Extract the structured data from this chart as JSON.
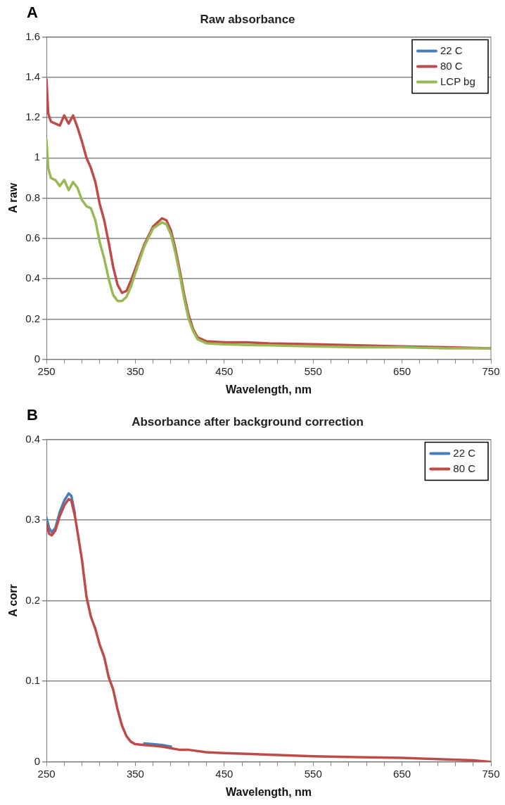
{
  "chart_data": [
    {
      "type": "line",
      "title": "Raw absorbance",
      "xlabel": "Wavelength, nm",
      "ylabel": "A raw",
      "annotations": [
        "A"
      ],
      "xlim": [
        250,
        750
      ],
      "xticks": [
        250,
        {
          "value": 270,
          "label": null
        },
        {
          "value": 290,
          "label": null
        },
        {
          "value": 310,
          "label": null
        },
        {
          "value": 330,
          "label": null
        },
        350,
        {
          "value": 370,
          "label": null
        },
        {
          "value": 390,
          "label": null
        },
        {
          "value": 410,
          "label": null
        },
        {
          "value": 430,
          "label": null
        },
        450,
        {
          "value": 470,
          "label": null
        },
        {
          "value": 490,
          "label": null
        },
        {
          "value": 510,
          "label": null
        },
        {
          "value": 530,
          "label": null
        },
        550,
        {
          "value": 570,
          "label": null
        },
        {
          "value": 590,
          "label": null
        },
        {
          "value": 610,
          "label": null
        },
        {
          "value": 630,
          "label": null
        },
        650,
        {
          "value": 670,
          "label": null
        },
        {
          "value": 690,
          "label": null
        },
        {
          "value": 710,
          "label": null
        },
        {
          "value": 730,
          "label": null
        },
        750
      ],
      "ylim": [
        0,
        1.6
      ],
      "yticks": [
        0,
        0.2,
        0.4,
        0.6,
        0.8,
        1,
        1.2,
        1.4,
        1.6
      ],
      "grid": "y",
      "legend": "top right",
      "marker": "none",
      "line_style": "solid",
      "x": [
        250,
        252,
        255,
        260,
        265,
        270,
        275,
        280,
        285,
        290,
        295,
        300,
        305,
        310,
        315,
        320,
        325,
        330,
        335,
        340,
        345,
        350,
        360,
        370,
        380,
        385,
        390,
        395,
        400,
        405,
        410,
        415,
        420,
        430,
        450,
        475,
        500,
        550,
        600,
        650,
        700,
        750
      ],
      "series": [
        {
          "name": "22 C",
          "color": "#4a7ebb",
          "values": [
            null,
            null,
            null,
            null,
            null,
            null,
            null,
            null,
            null,
            null,
            null,
            null,
            null,
            null,
            null,
            null,
            null,
            null,
            null,
            null,
            null,
            null,
            null,
            null,
            null,
            null,
            null,
            null,
            null,
            null,
            null,
            null,
            null,
            null,
            null,
            null,
            null,
            null,
            null,
            null,
            null,
            null
          ]
        },
        {
          "name": "80 C",
          "color": "#be4b48",
          "values": [
            1.39,
            1.22,
            1.18,
            1.17,
            1.16,
            1.21,
            1.17,
            1.21,
            1.15,
            1.08,
            1.0,
            0.95,
            0.88,
            0.77,
            0.69,
            0.58,
            0.46,
            0.37,
            0.33,
            0.34,
            0.39,
            0.45,
            0.57,
            0.66,
            0.7,
            0.69,
            0.64,
            0.55,
            0.44,
            0.32,
            0.22,
            0.15,
            0.11,
            0.09,
            0.085,
            0.085,
            0.08,
            0.075,
            0.07,
            0.065,
            0.06,
            0.055
          ]
        },
        {
          "name": "LCP bg",
          "color": "#98b954",
          "values": [
            1.09,
            0.95,
            0.9,
            0.89,
            0.86,
            0.89,
            0.84,
            0.88,
            0.85,
            0.79,
            0.76,
            0.75,
            0.69,
            0.58,
            0.5,
            0.4,
            0.32,
            0.29,
            0.29,
            0.31,
            0.36,
            0.43,
            0.56,
            0.65,
            0.68,
            0.67,
            0.62,
            0.53,
            0.42,
            0.3,
            0.2,
            0.14,
            0.1,
            0.08,
            0.075,
            0.072,
            0.07,
            0.065,
            0.06,
            0.06,
            0.055,
            0.055
          ]
        }
      ]
    },
    {
      "type": "line",
      "title": "Absorbance after background correction",
      "xlabel": "Wavelength, nm",
      "ylabel": "A corr",
      "annotations": [
        "B"
      ],
      "xlim": [
        250,
        750
      ],
      "xticks": [
        250,
        {
          "value": 270,
          "label": null
        },
        {
          "value": 290,
          "label": null
        },
        {
          "value": 310,
          "label": null
        },
        {
          "value": 330,
          "label": null
        },
        350,
        {
          "value": 370,
          "label": null
        },
        {
          "value": 390,
          "label": null
        },
        {
          "value": 410,
          "label": null
        },
        {
          "value": 430,
          "label": null
        },
        450,
        {
          "value": 470,
          "label": null
        },
        {
          "value": 490,
          "label": null
        },
        {
          "value": 510,
          "label": null
        },
        {
          "value": 530,
          "label": null
        },
        550,
        {
          "value": 570,
          "label": null
        },
        {
          "value": 590,
          "label": null
        },
        {
          "value": 610,
          "label": null
        },
        {
          "value": 630,
          "label": null
        },
        650,
        {
          "value": 670,
          "label": null
        },
        {
          "value": 690,
          "label": null
        },
        {
          "value": 710,
          "label": null
        },
        {
          "value": 730,
          "label": null
        },
        750
      ],
      "ylim": [
        0,
        0.4
      ],
      "yticks": [
        0,
        0.1,
        0.2,
        0.3,
        0.4
      ],
      "grid": "y",
      "legend": "top right",
      "marker": "none",
      "line_style": "solid",
      "x": [
        250,
        253,
        256,
        260,
        265,
        270,
        275,
        278,
        282,
        285,
        290,
        295,
        300,
        305,
        310,
        315,
        320,
        325,
        330,
        335,
        340,
        345,
        350,
        360,
        370,
        380,
        390,
        400,
        410,
        430,
        450,
        475,
        500,
        550,
        600,
        650,
        700,
        730,
        750
      ],
      "series": [
        {
          "name": "22 C",
          "color": "#4a7ebb",
          "values": [
            0.303,
            0.29,
            0.285,
            0.29,
            0.31,
            0.324,
            0.333,
            0.33,
            0.308,
            null,
            null,
            null,
            null,
            null,
            null,
            null,
            null,
            null,
            null,
            null,
            null,
            null,
            null,
            0.023,
            0.022,
            0.021,
            0.019,
            null,
            null,
            null,
            null,
            null,
            null,
            null,
            null,
            null,
            null,
            null,
            null
          ]
        },
        {
          "name": "80 C",
          "color": "#be4b48",
          "values": [
            0.295,
            0.283,
            0.281,
            0.287,
            0.305,
            0.318,
            0.326,
            0.324,
            0.305,
            0.285,
            0.25,
            0.205,
            0.18,
            0.165,
            0.145,
            0.13,
            0.105,
            0.09,
            0.065,
            0.045,
            0.032,
            0.025,
            0.022,
            0.021,
            0.02,
            0.019,
            0.017,
            0.015,
            0.015,
            0.012,
            0.011,
            0.01,
            0.009,
            0.007,
            0.006,
            0.005,
            0.003,
            0.002,
            0
          ]
        }
      ]
    }
  ]
}
